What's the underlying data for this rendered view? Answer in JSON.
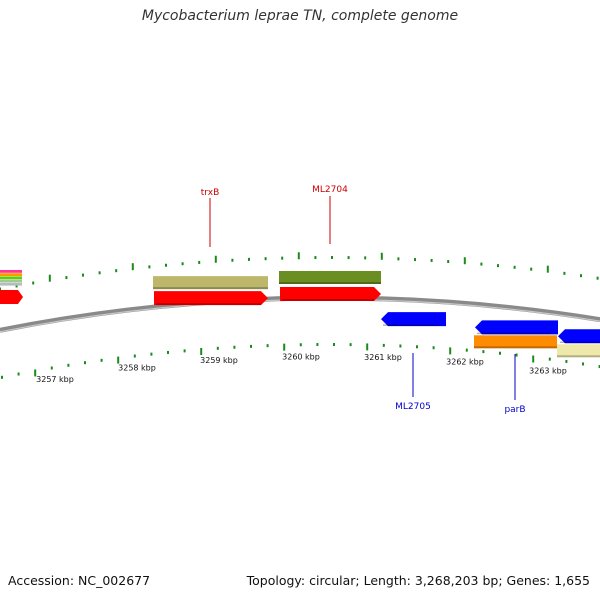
{
  "title": "Mycobacterium leprae TN, complete genome",
  "footer": {
    "accession": "Accession: NC_002677",
    "topology": "Topology: circular; Length: 3,268,203 bp; Genes: 1,655"
  },
  "map": {
    "kbp_labels": [
      "3257 kbp",
      "3258 kbp",
      "3259 kbp",
      "3260 kbp",
      "3261 kbp",
      "3262 kbp",
      "3263 kbp"
    ],
    "gene_labels": [
      {
        "name": "trxB",
        "color": "#cc0000",
        "strand": "forward"
      },
      {
        "name": "ML2704",
        "color": "#cc0000",
        "strand": "forward"
      },
      {
        "name": "ML2705",
        "color": "#0000cc",
        "strand": "reverse"
      },
      {
        "name": "parB",
        "color": "#0000cc",
        "strand": "reverse"
      }
    ],
    "colors": {
      "forward_cds": "#ff0000",
      "reverse_cds": "#0000ff",
      "khaki_feature": "#bdb76b",
      "olive_feature": "#6b8e23",
      "orange_feature": "#ff8c00",
      "pale_feature": "#eee8aa",
      "backbone": "#8a8a8a",
      "ticks": "#1a8a1a"
    }
  }
}
